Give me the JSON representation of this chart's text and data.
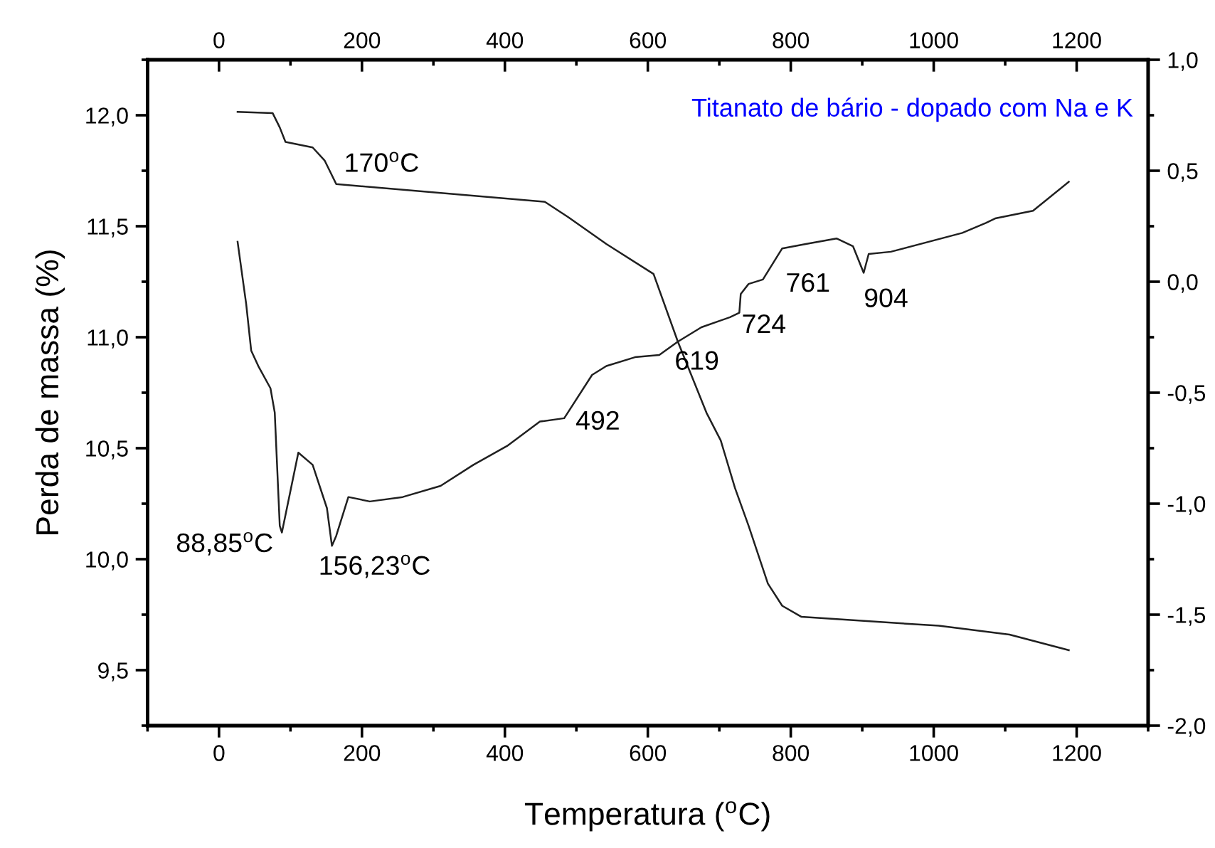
{
  "chart_data": {
    "type": "line",
    "title": "Titanato de bário - dopado com Na e K",
    "xlabel": "Temperatura ($^{o}$C)",
    "ylabel": "Perda de massa (%)",
    "xlim": [
      -100,
      1300
    ],
    "xticks": [
      {
        "value": -100,
        "label": null
      },
      0,
      {
        "value": 100,
        "label": null
      },
      200,
      {
        "value": 300,
        "label": null
      },
      400,
      {
        "value": 500,
        "label": null
      },
      600,
      {
        "value": 700,
        "label": null
      },
      800,
      {
        "value": 900,
        "label": null
      },
      1000,
      {
        "value": 1100,
        "label": null
      },
      1200,
      {
        "value": 1300,
        "label": null
      }
    ],
    "x2lim": [
      -100,
      1300
    ],
    "x2ticks": [
      {
        "value": -100,
        "label": null
      },
      0,
      {
        "value": 100,
        "label": null
      },
      200,
      {
        "value": 300,
        "label": null
      },
      400,
      {
        "value": 500,
        "label": null
      },
      600,
      {
        "value": 700,
        "label": null
      },
      800,
      {
        "value": 900,
        "label": null
      },
      1000,
      {
        "value": 1100,
        "label": null
      },
      1200,
      {
        "value": 1300,
        "label": null
      }
    ],
    "ylim": [
      9.25,
      12.25
    ],
    "yticks": [
      {
        "value": 9.25,
        "label": null
      },
      {
        "value": 9.5,
        "label": "9,5"
      },
      {
        "value": 9.75,
        "label": null
      },
      {
        "value": 10.0,
        "label": "10,0"
      },
      {
        "value": 10.25,
        "label": null
      },
      {
        "value": 10.5,
        "label": "10,5"
      },
      {
        "value": 10.75,
        "label": null
      },
      {
        "value": 11.0,
        "label": "11,0"
      },
      {
        "value": 11.25,
        "label": null
      },
      {
        "value": 11.5,
        "label": "11,5"
      },
      {
        "value": 11.75,
        "label": null
      },
      {
        "value": 12.0,
        "label": "12,0"
      },
      {
        "value": 12.25,
        "label": null
      }
    ],
    "y2lim": [
      -2.0,
      1.0
    ],
    "y2ticks": [
      {
        "value": -2.0,
        "label": "-2,0"
      },
      {
        "value": -1.75,
        "label": null
      },
      {
        "value": -1.5,
        "label": "-1,5"
      },
      {
        "value": -1.25,
        "label": null
      },
      {
        "value": -1.0,
        "label": "-1,0"
      },
      {
        "value": -0.75,
        "label": null
      },
      {
        "value": -0.5,
        "label": "-0,5"
      },
      {
        "value": -0.25,
        "label": null
      },
      {
        "value": 0.0,
        "label": "0,0"
      },
      {
        "value": 0.25,
        "label": null
      },
      {
        "value": 0.5,
        "label": "0,5"
      },
      {
        "value": 0.75,
        "label": null
      },
      {
        "value": 1.0,
        "label": "1,0"
      }
    ],
    "grid": false,
    "legend": false,
    "marker": "none",
    "line_style": "solid",
    "series": [
      {
        "color": "#202020",
        "x": [
          26,
          75,
          85,
          93,
          131,
          148,
          164,
          456,
          489,
          542,
          608,
          642,
          682,
          702,
          722,
          741,
          768,
          788,
          815,
          1007,
          1106,
          1189
        ],
        "values": [
          12.015,
          12.01,
          11.945,
          11.88,
          11.855,
          11.795,
          11.69,
          11.61,
          11.54,
          11.42,
          11.285,
          10.98,
          10.66,
          10.535,
          10.32,
          10.15,
          9.89,
          9.79,
          9.74,
          9.7,
          9.66,
          9.59
        ]
      },
      {
        "color": "#202020",
        "axis": "y2",
        "x": [
          26,
          38,
          45,
          55,
          72,
          78,
          85,
          88,
          95,
          111,
          131,
          151,
          158,
          164,
          181,
          211,
          257,
          310,
          356,
          403,
          449,
          483,
          522,
          542,
          582,
          616,
          642,
          675,
          715,
          728,
          730,
          741,
          761,
          788,
          821,
          864,
          887,
          902,
          909,
          940,
          1040,
          1073,
          1086,
          1139,
          1189
        ],
        "values": [
          0.18,
          -0.1,
          -0.31,
          -0.38,
          -0.48,
          -0.59,
          -1.1,
          -1.13,
          -1.02,
          -0.77,
          -0.825,
          -1.02,
          -1.19,
          -1.145,
          -0.97,
          -0.99,
          -0.97,
          -0.92,
          -0.825,
          -0.74,
          -0.63,
          -0.615,
          -0.42,
          -0.38,
          -0.34,
          -0.33,
          -0.27,
          -0.205,
          -0.16,
          -0.14,
          -0.055,
          -0.01,
          0.01,
          0.15,
          0.17,
          0.195,
          0.16,
          0.04,
          0.125,
          0.135,
          0.22,
          0.265,
          0.285,
          0.32,
          0.45
        ]
      }
    ],
    "annotations": [
      "170$^{o}$C",
      "88,85$^{o}$C",
      "156,23$^{o}$C",
      "492",
      "619",
      "724",
      "761",
      "904"
    ]
  }
}
